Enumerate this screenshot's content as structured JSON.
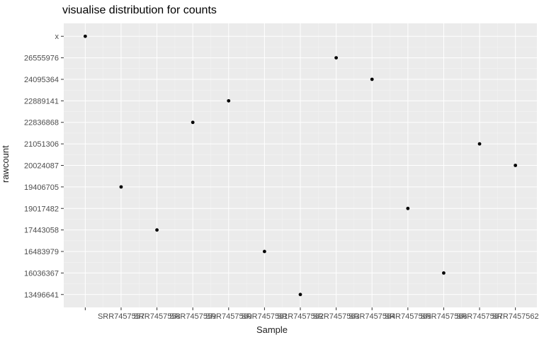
{
  "chart_data": {
    "type": "scatter",
    "title": "visualise distribution for counts",
    "xlabel": "Sample",
    "ylabel": "rawcount",
    "x_ticks": [
      "",
      "SRR7457557",
      "SRR7457558",
      "SRR7457559",
      "SRR7457560",
      "SRR7457561",
      "SRR7457562",
      "SRR7457563",
      "SRR7457564",
      "SRR7457565",
      "SRR7457566",
      "SRR7457567",
      "SRR7457562"
    ],
    "y_categories": [
      "13496641",
      "16036367",
      "16483979",
      "17443058",
      "19017482",
      "19406705",
      "20024087",
      "21051306",
      "22836868",
      "22889141",
      "24095364",
      "26555976",
      "x"
    ],
    "points": [
      {
        "x": "",
        "y": "x"
      },
      {
        "x": "SRR7457557",
        "y": "19406705"
      },
      {
        "x": "SRR7457558",
        "y": "17443058"
      },
      {
        "x": "SRR7457559",
        "y": "22836868"
      },
      {
        "x": "SRR7457560",
        "y": "22889141"
      },
      {
        "x": "SRR7457561",
        "y": "16483979"
      },
      {
        "x": "SRR7457562",
        "y": "13496641"
      },
      {
        "x": "SRR7457563",
        "y": "26555976"
      },
      {
        "x": "SRR7457564",
        "y": "24095364"
      },
      {
        "x": "SRR7457565",
        "y": "19017482"
      },
      {
        "x": "SRR7457566",
        "y": "16036367"
      },
      {
        "x": "SRR7457567",
        "y": "21051306"
      },
      {
        "x": "SRR7457562",
        "y": "20024087"
      }
    ],
    "grid": true,
    "colors": {
      "panel": "#ebebeb",
      "grid": "#ffffff",
      "point": "#000000"
    }
  }
}
